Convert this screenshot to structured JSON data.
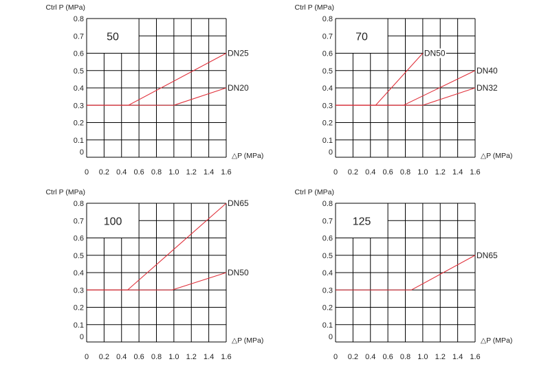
{
  "chart_data": [
    {
      "type": "line",
      "box_label": "50",
      "ylabel": "Ctrl P (MPa)",
      "xlabel": "△P (MPa)",
      "xlim": [
        0,
        1.6
      ],
      "ylim": [
        0,
        0.8
      ],
      "x_ticks": [
        "0",
        "0.2",
        "0.4",
        "0.6",
        "0.8",
        "1.0",
        "1.2",
        "1.4",
        "1.6"
      ],
      "y_ticks": [
        "0",
        "0.1",
        "0.2",
        "0.3",
        "0.4",
        "0.5",
        "0.6",
        "0.7",
        "0.8"
      ],
      "grid": true,
      "series": [
        {
          "name": "DN25",
          "points": [
            [
              0,
              0.3
            ],
            [
              0.48,
              0.3
            ],
            [
              1.6,
              0.6
            ]
          ]
        },
        {
          "name": "DN20",
          "points": [
            [
              0,
              0.3
            ],
            [
              1.0,
              0.3
            ],
            [
              1.6,
              0.4
            ]
          ]
        }
      ]
    },
    {
      "type": "line",
      "box_label": "70",
      "ylabel": "Ctrl P (MPa)",
      "xlabel": "△P (MPa)",
      "xlim": [
        0,
        1.6
      ],
      "ylim": [
        0,
        0.8
      ],
      "x_ticks": [
        "0",
        "0.2",
        "0.4",
        "0.6",
        "0.8",
        "1.0",
        "1.2",
        "1.4",
        "1.6"
      ],
      "y_ticks": [
        "0",
        "0.1",
        "0.2",
        "0.3",
        "0.4",
        "0.5",
        "0.6",
        "0.7",
        "0.8"
      ],
      "grid": true,
      "series": [
        {
          "name": "DN50",
          "points": [
            [
              0,
              0.3
            ],
            [
              0.46,
              0.3
            ],
            [
              1.0,
              0.6
            ]
          ]
        },
        {
          "name": "DN40",
          "points": [
            [
              0,
              0.3
            ],
            [
              0.78,
              0.3
            ],
            [
              1.6,
              0.5
            ]
          ]
        },
        {
          "name": "DN32",
          "points": [
            [
              0,
              0.3
            ],
            [
              1.0,
              0.3
            ],
            [
              1.6,
              0.4
            ]
          ]
        }
      ]
    },
    {
      "type": "line",
      "box_label": "100",
      "ylabel": "Ctrl P (MPa)",
      "xlabel": "△P (MPa)",
      "xlim": [
        0,
        1.6
      ],
      "ylim": [
        0,
        0.8
      ],
      "x_ticks": [
        "0",
        "0.2",
        "0.4",
        "0.6",
        "0.8",
        "1.0",
        "1.2",
        "1.4",
        "1.6"
      ],
      "y_ticks": [
        "0",
        "0.1",
        "0.2",
        "0.3",
        "0.4",
        "0.5",
        "0.6",
        "0.7",
        "0.8"
      ],
      "grid": true,
      "series": [
        {
          "name": "DN65",
          "points": [
            [
              0,
              0.3
            ],
            [
              0.47,
              0.3
            ],
            [
              1.6,
              0.8
            ]
          ]
        },
        {
          "name": "DN50",
          "points": [
            [
              0,
              0.3
            ],
            [
              0.98,
              0.3
            ],
            [
              1.6,
              0.4
            ]
          ]
        }
      ]
    },
    {
      "type": "line",
      "box_label": "125",
      "ylabel": "Ctrl P (MPa)",
      "xlabel": "△P (MPa)",
      "xlim": [
        0,
        1.6
      ],
      "ylim": [
        0,
        0.8
      ],
      "x_ticks": [
        "0",
        "0.2",
        "0.4",
        "0.6",
        "0.8",
        "1.0",
        "1.2",
        "1.4",
        "1.6"
      ],
      "y_ticks": [
        "0",
        "0.1",
        "0.2",
        "0.3",
        "0.4",
        "0.5",
        "0.6",
        "0.7",
        "0.8"
      ],
      "grid": true,
      "series": [
        {
          "name": "DN65",
          "points": [
            [
              0,
              0.3
            ],
            [
              0.87,
              0.3
            ],
            [
              1.6,
              0.5
            ]
          ]
        }
      ]
    }
  ],
  "colors": {
    "series_line": "#e0303a",
    "grid": "#000000",
    "text": "#222222"
  }
}
